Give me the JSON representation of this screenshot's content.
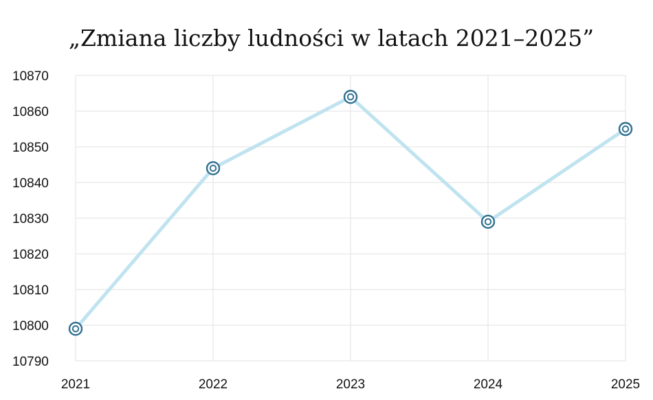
{
  "chart_data": {
    "type": "line",
    "title": "„Zmiana liczby ludności w latach 2021–2025”",
    "xlabel": "",
    "ylabel": "",
    "categories": [
      "2021",
      "2022",
      "2023",
      "2024",
      "2025"
    ],
    "series": [
      {
        "values": [
          10799,
          10844,
          10864,
          10829,
          10855
        ]
      }
    ],
    "ylim": [
      10790,
      10870
    ],
    "yticks": [
      10790,
      10800,
      10810,
      10820,
      10830,
      10840,
      10850,
      10860,
      10870
    ],
    "grid": true,
    "legend": "none",
    "colors": {
      "line": "#bfe3ef",
      "marker": "#2f6f8f",
      "grid": "#e6e6e6"
    }
  }
}
